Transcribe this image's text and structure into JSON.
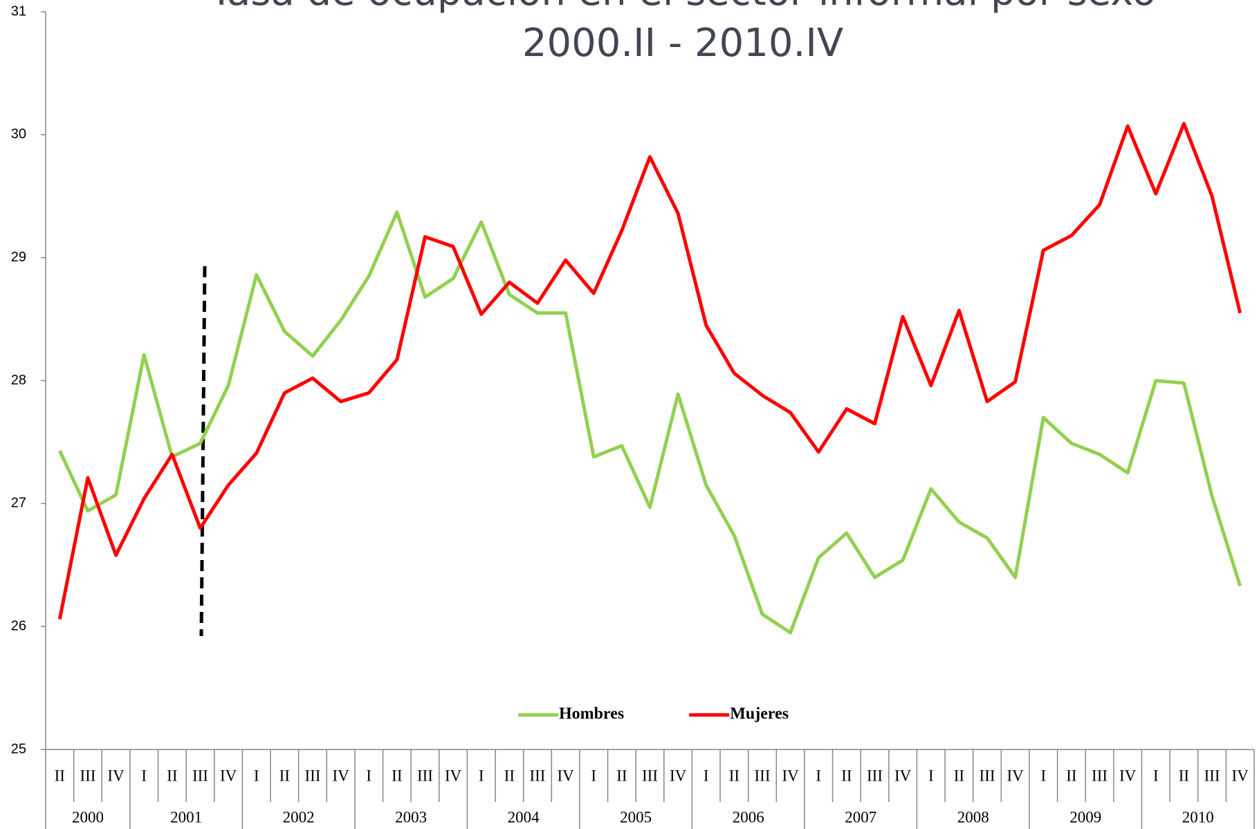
{
  "chart_data": {
    "type": "line",
    "title": "Tasa de ocupación en el sector informal por sexo",
    "subtitle": "2000.II - 2010.IV",
    "groups": [
      {
        "label": "2000",
        "categories": [
          "II",
          "III",
          "IV"
        ]
      },
      {
        "label": "2001",
        "categories": [
          "I",
          "II",
          "III",
          "IV"
        ]
      },
      {
        "label": "2002",
        "categories": [
          "I",
          "II",
          "III",
          "IV"
        ]
      },
      {
        "label": "2003",
        "categories": [
          "I",
          "II",
          "III",
          "IV"
        ]
      },
      {
        "label": "2004",
        "categories": [
          "I",
          "II",
          "III",
          "IV"
        ]
      },
      {
        "label": "2005",
        "categories": [
          "I",
          "II",
          "III",
          "IV"
        ]
      },
      {
        "label": "2006",
        "categories": [
          "I",
          "II",
          "III",
          "IV"
        ]
      },
      {
        "label": "2007",
        "categories": [
          "I",
          "II",
          "III",
          "IV"
        ]
      },
      {
        "label": "2008",
        "categories": [
          "I",
          "II",
          "III",
          "IV"
        ]
      },
      {
        "label": "2009",
        "categories": [
          "I",
          "II",
          "III",
          "IV"
        ]
      },
      {
        "label": "2010",
        "categories": [
          "I",
          "II",
          "III",
          "IV"
        ]
      }
    ],
    "series": [
      {
        "name": "Hombres",
        "color": "#92d050",
        "values": [
          27.43,
          26.94,
          27.07,
          28.21,
          27.38,
          27.49,
          27.96,
          28.86,
          28.4,
          28.2,
          28.49,
          28.85,
          29.37,
          28.68,
          28.83,
          29.29,
          28.7,
          28.55,
          28.55,
          27.38,
          27.47,
          26.97,
          27.89,
          27.15,
          26.74,
          26.1,
          25.95,
          26.56,
          26.76,
          26.4,
          26.54,
          27.12,
          26.85,
          26.72,
          26.4,
          27.7,
          27.49,
          27.4,
          27.25,
          28.0,
          27.98,
          27.06,
          26.33
        ]
      },
      {
        "name": "Mujeres",
        "color": "#ff0000",
        "values": [
          26.06,
          27.21,
          26.58,
          27.04,
          27.4,
          26.8,
          27.15,
          27.41,
          27.9,
          28.02,
          27.83,
          27.9,
          28.17,
          29.17,
          29.09,
          28.54,
          28.8,
          28.63,
          28.98,
          28.71,
          29.22,
          29.82,
          29.36,
          28.45,
          28.06,
          27.88,
          27.74,
          27.42,
          27.77,
          27.65,
          28.52,
          27.96,
          28.57,
          27.83,
          27.99,
          29.06,
          29.18,
          29.43,
          30.07,
          29.52,
          30.09,
          29.5,
          28.55
        ]
      }
    ],
    "ylim": [
      25,
      31
    ],
    "yticks": [
      25,
      26,
      27,
      28,
      29,
      30,
      31
    ],
    "grid": false,
    "legend": "bottom"
  }
}
